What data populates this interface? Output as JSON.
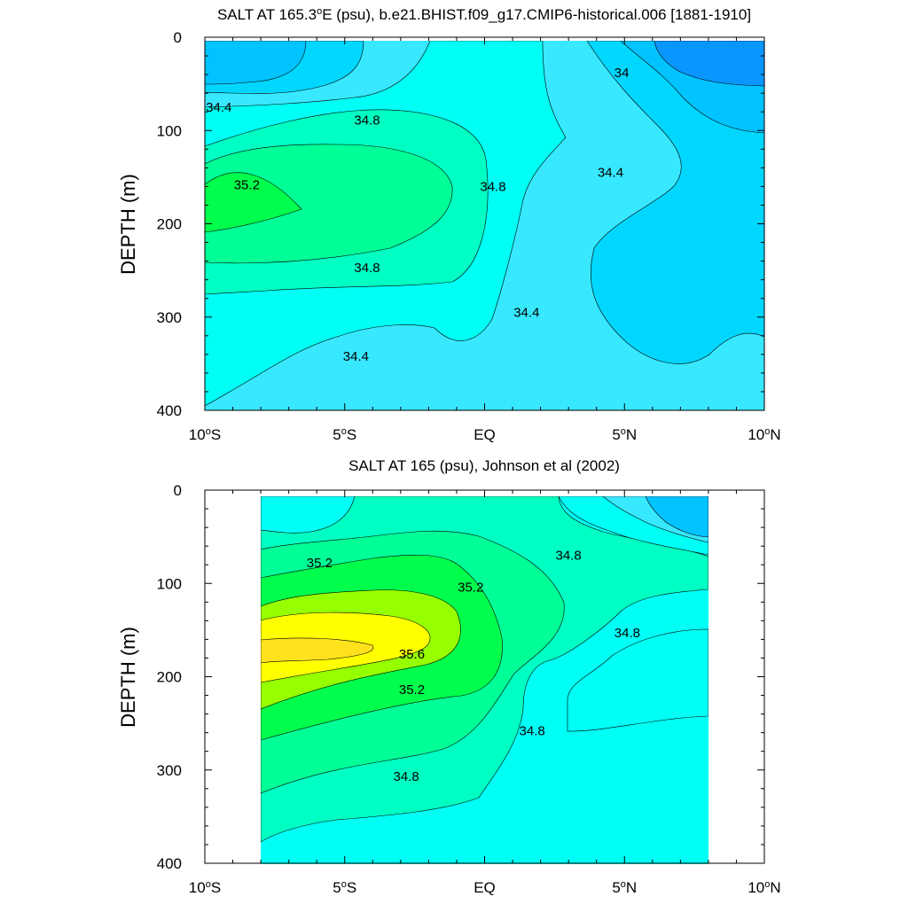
{
  "chart_data": [
    {
      "type": "contour",
      "title": "SALT AT 165.3°E (psu), b.e21.BHIST.f09_g17.CMIP6-historical.006 [1881-1910]",
      "title_parts": {
        "prefix": "SALT AT 165.3",
        "sup": "o",
        "suffix": "E (psu), b.e21.BHIST.f09_g17.CMIP6-historical.006 [1881-1910]"
      },
      "ylabel": "DEPTH (m)",
      "xlim": [
        -10,
        10
      ],
      "ylim": [
        400,
        0
      ],
      "y_ticks": [
        "0",
        "100",
        "200",
        "300",
        "400"
      ],
      "x_ticks": [
        {
          "main": "10",
          "sup": "o",
          "rest": "S"
        },
        {
          "main": "5",
          "sup": "o",
          "rest": "S"
        },
        {
          "main": "EQ",
          "sup": "",
          "rest": ""
        },
        {
          "main": "5",
          "sup": "o",
          "rest": "N"
        },
        {
          "main": "10",
          "sup": "o",
          "rest": "N"
        }
      ],
      "contour_interval": 0.2,
      "fill_levels": [
        {
          "value": 33.8,
          "color": "#0a96ff"
        },
        {
          "value": 34.0,
          "color": "#00c3ff"
        },
        {
          "value": 34.2,
          "color": "#00d7ff"
        },
        {
          "value": 34.4,
          "color": "#38e8ff"
        },
        {
          "value": 34.6,
          "color": "#00fff5"
        },
        {
          "value": 34.8,
          "color": "#00ffc3"
        },
        {
          "value": 35.0,
          "color": "#00ff96"
        },
        {
          "value": 35.2,
          "color": "#00ff4c"
        }
      ],
      "contour_labels": [
        {
          "text": "34.4",
          "lat": -9.5,
          "depth": 75
        },
        {
          "text": "34.8",
          "lat": -4.2,
          "depth": 89
        },
        {
          "text": "35.2",
          "lat": -8.5,
          "depth": 158
        },
        {
          "text": "34.8",
          "lat": 0.3,
          "depth": 160
        },
        {
          "text": "34.8",
          "lat": -4.2,
          "depth": 247
        },
        {
          "text": "34.4",
          "lat": 1.5,
          "depth": 295
        },
        {
          "text": "34.4",
          "lat": -4.6,
          "depth": 342
        },
        {
          "text": "34",
          "lat": 4.9,
          "depth": 38
        },
        {
          "text": "34.4",
          "lat": 4.5,
          "depth": 145
        }
      ]
    },
    {
      "type": "contour",
      "title": "SALT AT 165 (psu), Johnson et al (2002)",
      "title_parts": {
        "prefix": "SALT AT 165 (psu), Johnson et al (2002)",
        "sup": "",
        "suffix": ""
      },
      "ylabel": "DEPTH (m)",
      "xlim": [
        -10,
        10
      ],
      "ylim": [
        400,
        0
      ],
      "data_extent": {
        "lat": [
          -8,
          8
        ],
        "depth": [
          5,
          400
        ]
      },
      "y_ticks": [
        "0",
        "100",
        "200",
        "300",
        "400"
      ],
      "x_ticks": [
        {
          "main": "10",
          "sup": "o",
          "rest": "S"
        },
        {
          "main": "5",
          "sup": "o",
          "rest": "S"
        },
        {
          "main": "EQ",
          "sup": "",
          "rest": ""
        },
        {
          "main": "5",
          "sup": "o",
          "rest": "N"
        },
        {
          "main": "10",
          "sup": "o",
          "rest": "N"
        }
      ],
      "contour_interval": 0.2,
      "fill_levels": [
        {
          "value": 34.2,
          "color": "#00c3ff"
        },
        {
          "value": 34.4,
          "color": "#38e8ff"
        },
        {
          "value": 34.6,
          "color": "#00fff5"
        },
        {
          "value": 34.8,
          "color": "#00ffc3"
        },
        {
          "value": 35.0,
          "color": "#00ff96"
        },
        {
          "value": 35.2,
          "color": "#00ff4c"
        },
        {
          "value": 35.4,
          "color": "#96ff00"
        },
        {
          "value": 35.6,
          "color": "#ffff00"
        },
        {
          "value": 35.8,
          "color": "#ffe11e"
        }
      ],
      "contour_labels": [
        {
          "text": "35.2",
          "lat": -5.9,
          "depth": 78
        },
        {
          "text": "35.2",
          "lat": -0.5,
          "depth": 104
        },
        {
          "text": "35.6",
          "lat": -2.6,
          "depth": 176
        },
        {
          "text": "35.2",
          "lat": -2.6,
          "depth": 214
        },
        {
          "text": "34.8",
          "lat": 3.0,
          "depth": 70
        },
        {
          "text": "34.8",
          "lat": 5.1,
          "depth": 153
        },
        {
          "text": "34.8",
          "lat": 1.7,
          "depth": 258
        },
        {
          "text": "34.8",
          "lat": -2.8,
          "depth": 307
        }
      ]
    }
  ]
}
